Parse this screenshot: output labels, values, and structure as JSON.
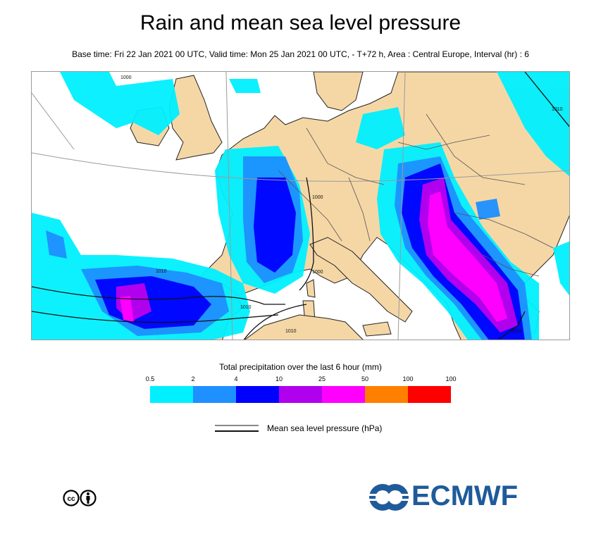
{
  "header": {
    "title": "Rain and mean sea level pressure",
    "subtitle": "Base time: Fri 22 Jan 2021 00 UTC, Valid time: Mon 25 Jan 2021 00 UTC, - T+72 h, Area : Central Europe, Interval (hr) : 6"
  },
  "map": {
    "colors": {
      "land": "#f5d7a6",
      "sea": "#ffffff",
      "coast": "#222222",
      "border": "#555555",
      "isobar": "#111111",
      "graticule": "#9a9a9a"
    },
    "isobar_labels": [
      "1000",
      "1000",
      "1000",
      "1010",
      "1010",
      "1010",
      "1010",
      "1010"
    ]
  },
  "legend": {
    "title": "Total precipitation over the last 6 hour (mm)",
    "ticks": [
      "0.5",
      "2",
      "4",
      "10",
      "25",
      "50",
      "100",
      "100"
    ],
    "colors": [
      "#00f0ff",
      "#1e90ff",
      "#0000ff",
      "#b000ee",
      "#ff00ff",
      "#ff8000",
      "#ff0000"
    ]
  },
  "pressure_legend": {
    "label": "Mean sea level pressure (hPa)"
  },
  "logos": {
    "cc_icon": "creative-commons-by-icon",
    "brand_text": "ECMWF",
    "brand_color": "#1f5b9a"
  }
}
